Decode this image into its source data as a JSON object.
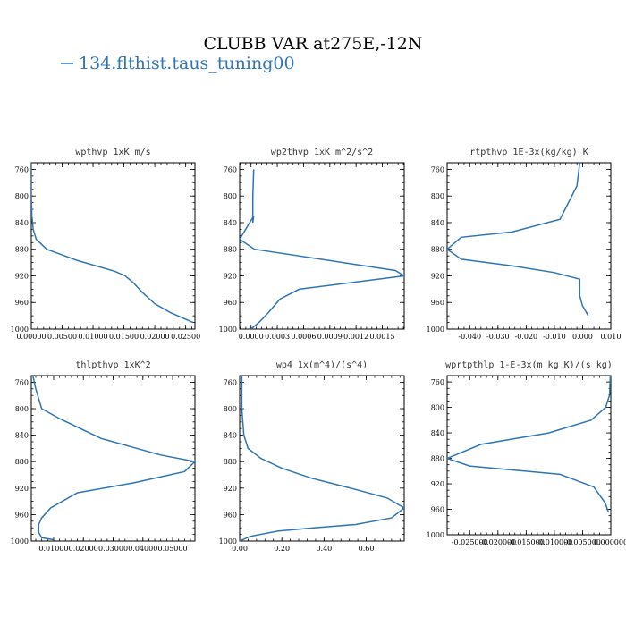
{
  "figure": {
    "title": "CLUBB VAR at275E,-12N",
    "legend": {
      "label": "134.flthist.taus_tuning00",
      "color": "#2E75B6"
    }
  },
  "chart_data": [
    {
      "type": "line",
      "title": "wpthvp  1xK m/s",
      "xlim": [
        0,
        0.0265
      ],
      "ylim": [
        1000,
        750
      ],
      "xticks": [
        "0.00000",
        "0.00500",
        "0.01000",
        "0.01500",
        "0.02000",
        "0.02500"
      ],
      "xtick_values": [
        0,
        0.005,
        0.01,
        0.015,
        0.02,
        0.025
      ],
      "yticks": [
        "760",
        "800",
        "840",
        "880",
        "920",
        "960",
        "1000"
      ],
      "ytick_values": [
        760,
        800,
        840,
        880,
        920,
        960,
        1000
      ],
      "series": [
        {
          "x": [
            0.0,
            0.0,
            0.0001,
            0.0003,
            0.0008,
            0.0025,
            0.0075,
            0.0135,
            0.0152,
            0.0165,
            0.018,
            0.02,
            0.0225,
            0.0262
          ],
          "y": [
            750,
            800,
            830,
            850,
            865,
            880,
            897,
            913,
            920,
            930,
            945,
            962,
            975,
            990
          ]
        }
      ]
    },
    {
      "type": "line",
      "title": "wp2thvp  1xK m^2/s^2",
      "xlim": [
        -0.00013,
        0.00175
      ],
      "ylim": [
        1000,
        750
      ],
      "xticks": [
        "0.0000",
        "0.0003",
        "0.0006",
        "0.0009",
        "0.0012",
        "0.0015"
      ],
      "xtick_values": [
        0,
        0.0003,
        0.0006,
        0.0009,
        0.0012,
        0.0015
      ],
      "yticks": [
        "760",
        "800",
        "840",
        "880",
        "920",
        "960",
        "1000"
      ],
      "ytick_values": [
        760,
        800,
        840,
        880,
        920,
        960,
        1000
      ],
      "series": [
        {
          "x": [
            3e-05,
            2e-05,
            2e-05,
            3e-05,
            -0.00013,
            4e-05,
            0.00165,
            0.00175,
            0.00055,
            0.00033,
            0.0002,
            9e-05,
            0.0
          ],
          "y": [
            760,
            800,
            840,
            830,
            865,
            880,
            912,
            920,
            940,
            955,
            975,
            990,
            1000
          ]
        }
      ]
    },
    {
      "type": "line",
      "title": "rtpthvp  1E-3x(kg/kg) K",
      "xlim": [
        -0.048,
        0.01
      ],
      "ylim": [
        1000,
        750
      ],
      "xticks": [
        "-0.040",
        "-0.030",
        "-0.020",
        "-0.010",
        "0.000",
        "0.010"
      ],
      "xtick_values": [
        -0.04,
        -0.03,
        -0.02,
        -0.01,
        0.0,
        0.01
      ],
      "yticks": [
        "760",
        "800",
        "840",
        "880",
        "920",
        "960",
        "1000"
      ],
      "ytick_values": [
        760,
        800,
        840,
        880,
        920,
        960,
        1000
      ],
      "series": [
        {
          "x": [
            -0.001,
            -0.002,
            -0.008,
            -0.025,
            -0.043,
            -0.048,
            -0.043,
            -0.025,
            -0.01,
            -0.001,
            -0.001,
            -0.001,
            0.0,
            0.002
          ],
          "y": [
            750,
            785,
            835,
            854,
            862,
            880,
            895,
            905,
            915,
            925,
            935,
            950,
            965,
            980
          ]
        }
      ]
    },
    {
      "type": "line",
      "title": "thlpthvp  1xK^2",
      "xlim": [
        0.0025,
        0.0575
      ],
      "ylim": [
        1000,
        750
      ],
      "xticks": [
        "0.01000",
        "0.02000",
        "0.03000",
        "0.04000",
        "0.05000"
      ],
      "xtick_values": [
        0.01,
        0.02,
        0.03,
        0.04,
        0.05
      ],
      "yticks": [
        "760",
        "800",
        "840",
        "880",
        "920",
        "960",
        "1000"
      ],
      "ytick_values": [
        760,
        800,
        840,
        880,
        920,
        960,
        1000
      ],
      "series": [
        {
          "x": [
            0.003,
            0.004,
            0.006,
            0.012,
            0.026,
            0.046,
            0.0575,
            0.054,
            0.037,
            0.018,
            0.009,
            0.006,
            0.005,
            0.005,
            0.006,
            0.01
          ],
          "y": [
            750,
            770,
            800,
            815,
            845,
            870,
            880,
            895,
            912,
            927,
            950,
            965,
            975,
            987,
            995,
            998
          ]
        }
      ]
    },
    {
      "type": "line",
      "title": "wp4  1x(m^4)/(s^4)",
      "xlim": [
        0,
        0.78
      ],
      "ylim": [
        1000,
        750
      ],
      "xticks": [
        "0.00",
        "0.20",
        "0.40",
        "0.60"
      ],
      "xtick_values": [
        0,
        0.2,
        0.4,
        0.6
      ],
      "yticks": [
        "760",
        "800",
        "840",
        "880",
        "920",
        "960",
        "1000"
      ],
      "ytick_values": [
        760,
        800,
        840,
        880,
        920,
        960,
        1000
      ],
      "series": [
        {
          "x": [
            0.01,
            0.01,
            0.02,
            0.04,
            0.1,
            0.2,
            0.34,
            0.55,
            0.7,
            0.78,
            0.72,
            0.55,
            0.35,
            0.18,
            0.05,
            0.0
          ],
          "y": [
            750,
            800,
            840,
            860,
            875,
            890,
            905,
            922,
            935,
            950,
            965,
            975,
            980,
            985,
            993,
            1000
          ]
        }
      ]
    },
    {
      "type": "line",
      "title": "wprtpthlp  1-E-3x(m kg K)/(s kg)",
      "xlim": [
        -0.029,
        0.0
      ],
      "ylim": [
        1000,
        750
      ],
      "xticks": [
        "-0.025000",
        "-0.020000",
        "-0.015000",
        "-0.010000",
        "-0.005000",
        "0.000000"
      ],
      "xtick_values": [
        -0.025,
        -0.02,
        -0.015,
        -0.01,
        -0.005,
        0.0
      ],
      "yticks": [
        "760",
        "800",
        "840",
        "880",
        "920",
        "960",
        "1000"
      ],
      "ytick_values": [
        760,
        800,
        840,
        880,
        920,
        960,
        1000
      ],
      "series": [
        {
          "x": [
            -0.0001,
            -0.0002,
            -0.0009,
            -0.0035,
            -0.011,
            -0.023,
            -0.029,
            -0.025,
            -0.009,
            -0.003,
            -0.001,
            -0.0004
          ],
          "y": [
            750,
            780,
            800,
            820,
            840,
            858,
            880,
            892,
            905,
            925,
            950,
            965
          ]
        }
      ]
    }
  ]
}
